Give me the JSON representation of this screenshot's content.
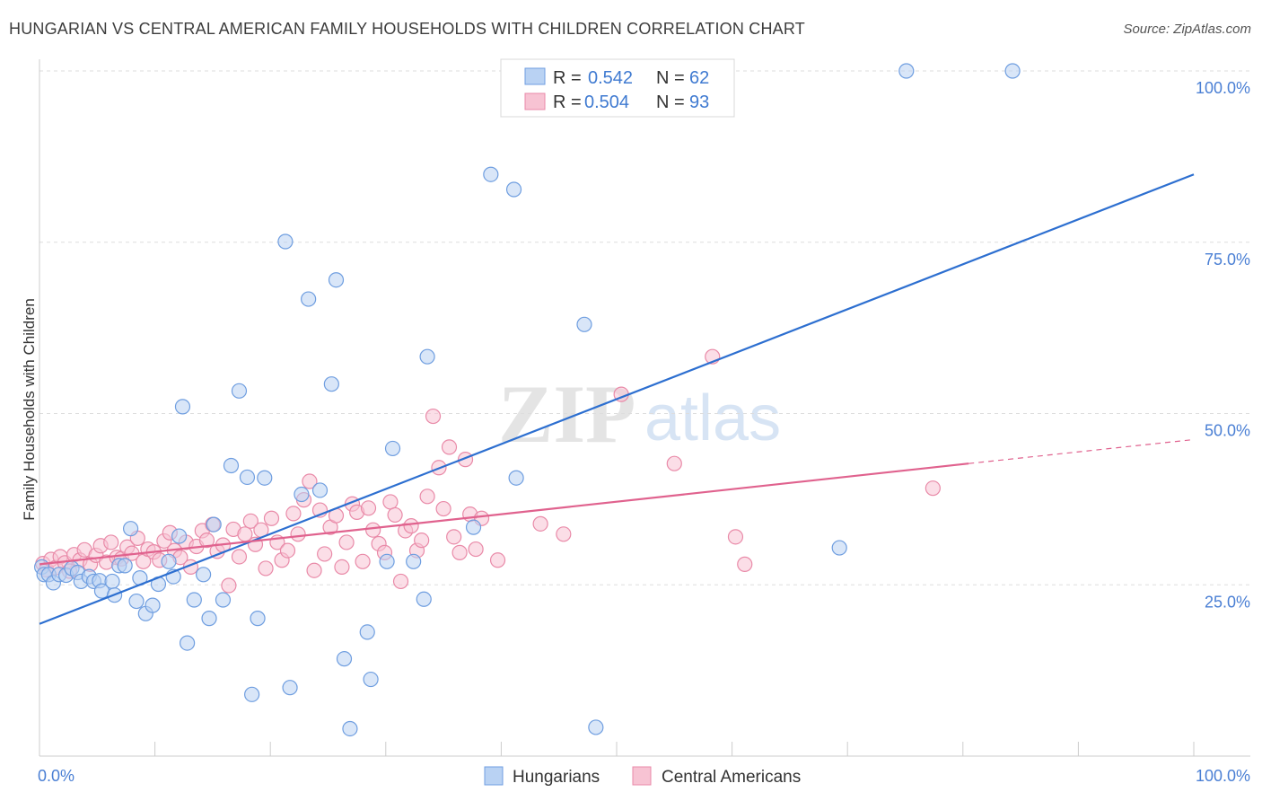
{
  "title": "HUNGARIAN VS CENTRAL AMERICAN FAMILY HOUSEHOLDS WITH CHILDREN CORRELATION CHART",
  "source": "Source: ZipAtlas.com",
  "watermark": {
    "zip": "ZIP",
    "atlas": "atlas"
  },
  "colors": {
    "blue_fill": "#b9d2f3",
    "blue_stroke": "#6f9ee0",
    "blue_line": "#2d6fd0",
    "pink_fill": "#f7c3d3",
    "pink_stroke": "#e98aa8",
    "pink_line": "#e0628e",
    "grid": "#dddddd",
    "tick_text": "#4a7fd4"
  },
  "legend": {
    "rows": [
      {
        "r_label": "R =",
        "r_value": "0.542",
        "n_label": "N =",
        "n_value": "62"
      },
      {
        "r_label": "R =",
        "r_value": "0.504",
        "n_label": "N =",
        "n_value": "93"
      }
    ]
  },
  "chart_data": {
    "type": "scatter",
    "title": "HUNGARIAN VS CENTRAL AMERICAN FAMILY HOUSEHOLDS WITH CHILDREN CORRELATION CHART",
    "xlabel": "",
    "ylabel": "Family Households with Children",
    "xlim": [
      0,
      100
    ],
    "ylim": [
      0,
      100
    ],
    "x_tick_labels": [
      "0.0%",
      "100.0%"
    ],
    "y_ticks": [
      25,
      50,
      75,
      100
    ],
    "y_tick_labels": [
      "25.0%",
      "50.0%",
      "75.0%",
      "100.0%"
    ],
    "grid": true,
    "legend_position": "top-center",
    "series": [
      {
        "name": "Hungarians",
        "color": "#b9d2f3",
        "trend": {
          "x0": 0,
          "y0": 19.3,
          "x1": 100,
          "y1": 84.9,
          "dashed_from": null
        },
        "points": [
          [
            0.2,
            27.6
          ],
          [
            0.4,
            26.5
          ],
          [
            0.8,
            26.5
          ],
          [
            1.2,
            25.3
          ],
          [
            1.7,
            26.5
          ],
          [
            2.3,
            26.4
          ],
          [
            2.8,
            27.4
          ],
          [
            3.3,
            26.8
          ],
          [
            3.6,
            25.5
          ],
          [
            4.3,
            26.2
          ],
          [
            4.7,
            25.5
          ],
          [
            5.2,
            25.6
          ],
          [
            5.4,
            24.1
          ],
          [
            6.3,
            25.5
          ],
          [
            6.5,
            23.5
          ],
          [
            6.9,
            27.8
          ],
          [
            7.4,
            27.8
          ],
          [
            7.9,
            33.2
          ],
          [
            8.4,
            22.6
          ],
          [
            8.7,
            26.0
          ],
          [
            9.2,
            20.8
          ],
          [
            9.8,
            22.0
          ],
          [
            10.3,
            25.1
          ],
          [
            11.2,
            28.4
          ],
          [
            11.6,
            26.2
          ],
          [
            12.1,
            32.1
          ],
          [
            12.4,
            51.0
          ],
          [
            12.8,
            16.5
          ],
          [
            13.4,
            22.8
          ],
          [
            14.2,
            26.5
          ],
          [
            14.7,
            20.1
          ],
          [
            15.1,
            33.8
          ],
          [
            15.9,
            22.8
          ],
          [
            16.6,
            42.4
          ],
          [
            17.3,
            53.3
          ],
          [
            18.0,
            40.7
          ],
          [
            18.4,
            9.0
          ],
          [
            18.9,
            20.1
          ],
          [
            19.5,
            40.6
          ],
          [
            21.3,
            75.1
          ],
          [
            21.7,
            10.0
          ],
          [
            22.7,
            38.2
          ],
          [
            23.3,
            66.7
          ],
          [
            24.3,
            38.8
          ],
          [
            25.3,
            54.3
          ],
          [
            25.7,
            69.5
          ],
          [
            26.4,
            14.2
          ],
          [
            26.9,
            4.0
          ],
          [
            28.4,
            18.1
          ],
          [
            28.7,
            11.2
          ],
          [
            30.1,
            28.4
          ],
          [
            30.6,
            44.9
          ],
          [
            32.4,
            28.4
          ],
          [
            33.3,
            22.9
          ],
          [
            33.6,
            58.3
          ],
          [
            37.6,
            33.4
          ],
          [
            39.1,
            84.9
          ],
          [
            41.1,
            82.7
          ],
          [
            41.3,
            40.6
          ],
          [
            47.2,
            63.0
          ],
          [
            48.2,
            4.2
          ],
          [
            69.3,
            30.4
          ],
          [
            75.1,
            100.0
          ],
          [
            84.3,
            100.0
          ]
        ]
      },
      {
        "name": "Central Americans",
        "color": "#f7c3d3",
        "trend": {
          "x0": 0,
          "y0": 28.0,
          "x1": 80.5,
          "y1": 42.7,
          "dashed_from": 80.5,
          "dashed_to": 100,
          "dashed_y1": 46.2
        },
        "points": [
          [
            0.3,
            28.1
          ],
          [
            0.6,
            27.2
          ],
          [
            1.0,
            28.7
          ],
          [
            1.4,
            27.5
          ],
          [
            1.8,
            29.1
          ],
          [
            2.2,
            28.2
          ],
          [
            2.6,
            27.0
          ],
          [
            3.0,
            29.4
          ],
          [
            3.5,
            28.6
          ],
          [
            3.9,
            30.1
          ],
          [
            4.4,
            28.0
          ],
          [
            4.9,
            29.3
          ],
          [
            5.3,
            30.7
          ],
          [
            5.8,
            28.3
          ],
          [
            6.2,
            31.2
          ],
          [
            6.7,
            29.0
          ],
          [
            7.1,
            28.8
          ],
          [
            7.6,
            30.5
          ],
          [
            8.0,
            29.6
          ],
          [
            8.5,
            31.8
          ],
          [
            9.0,
            28.4
          ],
          [
            9.4,
            30.2
          ],
          [
            9.9,
            29.8
          ],
          [
            10.4,
            28.6
          ],
          [
            10.8,
            31.4
          ],
          [
            11.3,
            32.6
          ],
          [
            11.7,
            30.0
          ],
          [
            12.2,
            29.0
          ],
          [
            12.7,
            31.2
          ],
          [
            13.1,
            27.6
          ],
          [
            13.6,
            30.6
          ],
          [
            14.1,
            32.9
          ],
          [
            14.5,
            31.5
          ],
          [
            15.0,
            33.8
          ],
          [
            15.4,
            29.9
          ],
          [
            15.9,
            30.8
          ],
          [
            16.4,
            24.9
          ],
          [
            16.8,
            33.1
          ],
          [
            17.3,
            29.1
          ],
          [
            17.8,
            32.4
          ],
          [
            18.3,
            34.3
          ],
          [
            18.7,
            30.9
          ],
          [
            19.2,
            33.0
          ],
          [
            19.6,
            27.4
          ],
          [
            20.1,
            34.7
          ],
          [
            20.6,
            31.2
          ],
          [
            21.0,
            28.6
          ],
          [
            21.5,
            30.0
          ],
          [
            22.0,
            35.4
          ],
          [
            22.4,
            32.4
          ],
          [
            22.9,
            37.4
          ],
          [
            23.4,
            40.1
          ],
          [
            23.8,
            27.1
          ],
          [
            24.3,
            35.9
          ],
          [
            24.7,
            29.5
          ],
          [
            25.2,
            33.4
          ],
          [
            25.7,
            35.1
          ],
          [
            26.2,
            27.6
          ],
          [
            26.6,
            31.2
          ],
          [
            27.1,
            36.8
          ],
          [
            27.5,
            35.6
          ],
          [
            28.0,
            28.4
          ],
          [
            28.5,
            36.2
          ],
          [
            28.9,
            33.0
          ],
          [
            29.4,
            31.0
          ],
          [
            29.9,
            29.7
          ],
          [
            30.4,
            37.1
          ],
          [
            30.8,
            35.2
          ],
          [
            31.3,
            25.5
          ],
          [
            31.7,
            32.9
          ],
          [
            32.2,
            33.6
          ],
          [
            32.7,
            30.0
          ],
          [
            33.1,
            31.5
          ],
          [
            33.6,
            37.9
          ],
          [
            34.1,
            49.6
          ],
          [
            34.6,
            42.1
          ],
          [
            35.0,
            36.1
          ],
          [
            35.5,
            45.1
          ],
          [
            35.9,
            32.0
          ],
          [
            36.4,
            29.7
          ],
          [
            36.9,
            43.3
          ],
          [
            37.3,
            35.3
          ],
          [
            37.8,
            30.2
          ],
          [
            38.3,
            34.7
          ],
          [
            39.7,
            28.6
          ],
          [
            43.4,
            33.9
          ],
          [
            45.4,
            32.4
          ],
          [
            50.4,
            52.8
          ],
          [
            55.0,
            42.7
          ],
          [
            58.3,
            58.3
          ],
          [
            60.3,
            32.0
          ],
          [
            61.1,
            28.0
          ],
          [
            77.4,
            39.1
          ]
        ]
      }
    ]
  },
  "bottom_legend": [
    {
      "label": "Hungarians"
    },
    {
      "label": "Central Americans"
    }
  ]
}
